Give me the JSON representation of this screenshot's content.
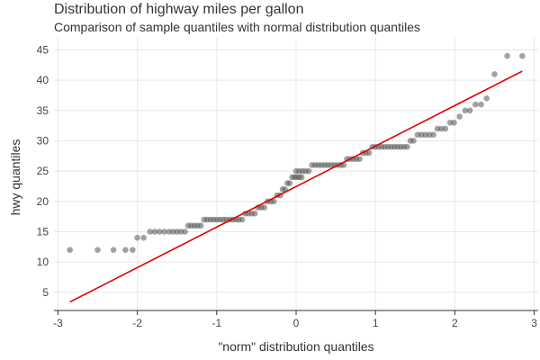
{
  "chart_data": {
    "type": "scatter",
    "title": "Distribution of highway miles per gallon",
    "subtitle": "Comparison of sample quantiles with normal distribution quantiles",
    "xlabel": "\"norm\" distribution quantiles",
    "ylabel": "hwy quantiles",
    "xlim": [
      -3.05,
      3.05
    ],
    "ylim": [
      2,
      47
    ],
    "xticks": [
      -3,
      -2,
      -1,
      0,
      1,
      2,
      3
    ],
    "yticks": [
      5,
      10,
      15,
      20,
      25,
      30,
      35,
      40,
      45
    ],
    "grid": true,
    "reference_line": {
      "x": [
        -2.85,
        2.85
      ],
      "y": [
        3.4,
        41.5
      ],
      "color": "#e00000"
    },
    "point_color": "#555555",
    "points": [
      {
        "x": -2.85,
        "y": 12
      },
      {
        "x": -2.5,
        "y": 12
      },
      {
        "x": -2.3,
        "y": 12
      },
      {
        "x": -2.15,
        "y": 12
      },
      {
        "x": -2.06,
        "y": 12
      },
      {
        "x": -2.0,
        "y": 14
      },
      {
        "x": -1.92,
        "y": 14
      },
      {
        "x": -1.84,
        "y": 15
      },
      {
        "x": -1.78,
        "y": 15
      },
      {
        "x": -1.72,
        "y": 15
      },
      {
        "x": -1.66,
        "y": 15
      },
      {
        "x": -1.6,
        "y": 15
      },
      {
        "x": -1.55,
        "y": 15
      },
      {
        "x": -1.5,
        "y": 15
      },
      {
        "x": -1.45,
        "y": 15
      },
      {
        "x": -1.4,
        "y": 15
      },
      {
        "x": -1.36,
        "y": 16
      },
      {
        "x": -1.32,
        "y": 16
      },
      {
        "x": -1.28,
        "y": 16
      },
      {
        "x": -1.24,
        "y": 16
      },
      {
        "x": -1.2,
        "y": 16
      },
      {
        "x": -1.16,
        "y": 17
      },
      {
        "x": -1.12,
        "y": 17
      },
      {
        "x": -1.08,
        "y": 17
      },
      {
        "x": -1.04,
        "y": 17
      },
      {
        "x": -1.0,
        "y": 17
      },
      {
        "x": -0.96,
        "y": 17
      },
      {
        "x": -0.92,
        "y": 17
      },
      {
        "x": -0.88,
        "y": 17
      },
      {
        "x": -0.84,
        "y": 17
      },
      {
        "x": -0.8,
        "y": 17
      },
      {
        "x": -0.76,
        "y": 17
      },
      {
        "x": -0.72,
        "y": 17
      },
      {
        "x": -0.68,
        "y": 17
      },
      {
        "x": -0.64,
        "y": 18
      },
      {
        "x": -0.6,
        "y": 18
      },
      {
        "x": -0.56,
        "y": 18
      },
      {
        "x": -0.52,
        "y": 18
      },
      {
        "x": -0.48,
        "y": 19
      },
      {
        "x": -0.44,
        "y": 19
      },
      {
        "x": -0.4,
        "y": 19
      },
      {
        "x": -0.36,
        "y": 20
      },
      {
        "x": -0.32,
        "y": 20
      },
      {
        "x": -0.28,
        "y": 20
      },
      {
        "x": -0.24,
        "y": 21
      },
      {
        "x": -0.2,
        "y": 21
      },
      {
        "x": -0.17,
        "y": 22
      },
      {
        "x": -0.14,
        "y": 22
      },
      {
        "x": -0.11,
        "y": 23
      },
      {
        "x": -0.08,
        "y": 23
      },
      {
        "x": -0.05,
        "y": 24
      },
      {
        "x": -0.02,
        "y": 24
      },
      {
        "x": 0.01,
        "y": 24
      },
      {
        "x": 0.04,
        "y": 24
      },
      {
        "x": 0.07,
        "y": 24
      },
      {
        "x": 0.0,
        "y": 25
      },
      {
        "x": 0.04,
        "y": 25
      },
      {
        "x": 0.08,
        "y": 25
      },
      {
        "x": 0.12,
        "y": 25
      },
      {
        "x": 0.16,
        "y": 25
      },
      {
        "x": 0.2,
        "y": 26
      },
      {
        "x": 0.24,
        "y": 26
      },
      {
        "x": 0.28,
        "y": 26
      },
      {
        "x": 0.32,
        "y": 26
      },
      {
        "x": 0.36,
        "y": 26
      },
      {
        "x": 0.4,
        "y": 26
      },
      {
        "x": 0.44,
        "y": 26
      },
      {
        "x": 0.48,
        "y": 26
      },
      {
        "x": 0.52,
        "y": 26
      },
      {
        "x": 0.56,
        "y": 26
      },
      {
        "x": 0.6,
        "y": 26
      },
      {
        "x": 0.64,
        "y": 27
      },
      {
        "x": 0.68,
        "y": 27
      },
      {
        "x": 0.72,
        "y": 27
      },
      {
        "x": 0.76,
        "y": 27
      },
      {
        "x": 0.8,
        "y": 27
      },
      {
        "x": 0.84,
        "y": 28
      },
      {
        "x": 0.88,
        "y": 28
      },
      {
        "x": 0.92,
        "y": 28
      },
      {
        "x": 0.96,
        "y": 29
      },
      {
        "x": 1.0,
        "y": 29
      },
      {
        "x": 1.04,
        "y": 29
      },
      {
        "x": 1.08,
        "y": 29
      },
      {
        "x": 1.12,
        "y": 29
      },
      {
        "x": 1.16,
        "y": 29
      },
      {
        "x": 1.2,
        "y": 29
      },
      {
        "x": 1.24,
        "y": 29
      },
      {
        "x": 1.28,
        "y": 29
      },
      {
        "x": 1.32,
        "y": 29
      },
      {
        "x": 1.36,
        "y": 29
      },
      {
        "x": 1.4,
        "y": 29
      },
      {
        "x": 1.44,
        "y": 30
      },
      {
        "x": 1.48,
        "y": 30
      },
      {
        "x": 1.53,
        "y": 31
      },
      {
        "x": 1.58,
        "y": 31
      },
      {
        "x": 1.63,
        "y": 31
      },
      {
        "x": 1.68,
        "y": 31
      },
      {
        "x": 1.73,
        "y": 31
      },
      {
        "x": 1.78,
        "y": 32
      },
      {
        "x": 1.83,
        "y": 32
      },
      {
        "x": 1.88,
        "y": 32
      },
      {
        "x": 1.94,
        "y": 33
      },
      {
        "x": 1.99,
        "y": 33
      },
      {
        "x": 2.06,
        "y": 34
      },
      {
        "x": 2.13,
        "y": 35
      },
      {
        "x": 2.19,
        "y": 35
      },
      {
        "x": 2.26,
        "y": 36
      },
      {
        "x": 2.33,
        "y": 36
      },
      {
        "x": 2.4,
        "y": 37
      },
      {
        "x": 2.5,
        "y": 41
      },
      {
        "x": 2.66,
        "y": 44
      },
      {
        "x": 2.85,
        "y": 44
      }
    ]
  }
}
